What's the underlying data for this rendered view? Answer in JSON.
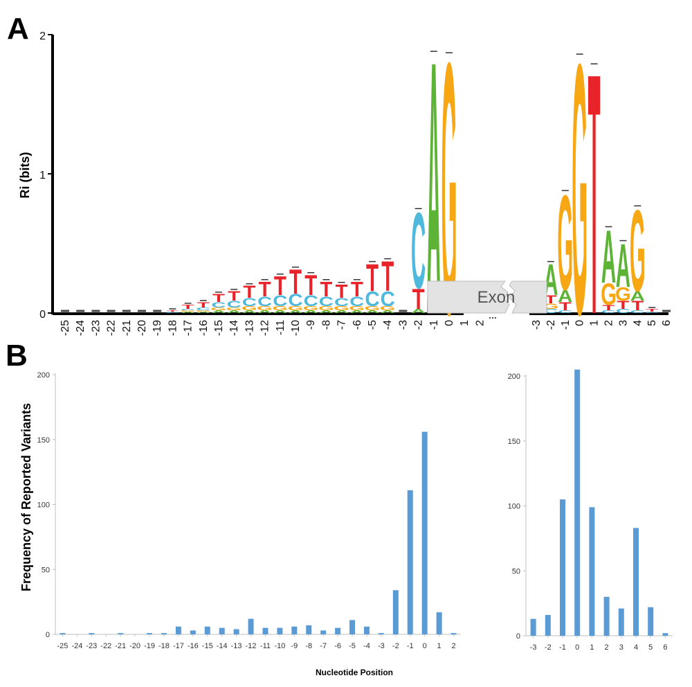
{
  "panel_a_label": "A",
  "panel_b_label": "B",
  "exon_label": "Exon",
  "break_mark": "...",
  "chart_data": [
    {
      "type": "sequence-logo",
      "panel": "A",
      "title": "",
      "ylabel": "Ri (bits)",
      "xlabel": "",
      "ylim": [
        0,
        2
      ],
      "yticks": [
        0,
        1,
        2
      ],
      "colors": {
        "A": "#5cb335",
        "C": "#4fb8dd",
        "G": "#f6a713",
        "T": "#e8242a"
      },
      "segments": [
        {
          "name": "acceptor",
          "positions": [
            "-25",
            "-24",
            "-23",
            "-22",
            "-21",
            "-20",
            "-19",
            "-18",
            "-17",
            "-16",
            "-15",
            "-14",
            "-13",
            "-12",
            "-11",
            "-10",
            "-9",
            "-8",
            "-7",
            "-6",
            "-5",
            "-4",
            "-3",
            "-2",
            "-1",
            "0",
            "1",
            "2"
          ],
          "stacks": [
            [],
            [],
            [],
            [],
            [],
            [],
            [],
            [
              [
                "C",
                0.01
              ],
              [
                "T",
                0.01
              ]
            ],
            [
              [
                "A",
                0.01
              ],
              [
                "G",
                0.01
              ],
              [
                "C",
                0.01
              ],
              [
                "T",
                0.03
              ]
            ],
            [
              [
                "A",
                0.01
              ],
              [
                "G",
                0.01
              ],
              [
                "C",
                0.02
              ],
              [
                "T",
                0.04
              ]
            ],
            [
              [
                "A",
                0.02
              ],
              [
                "G",
                0.02
              ],
              [
                "C",
                0.04
              ],
              [
                "T",
                0.06
              ]
            ],
            [
              [
                "A",
                0.02
              ],
              [
                "G",
                0.02
              ],
              [
                "C",
                0.05
              ],
              [
                "T",
                0.07
              ]
            ],
            [
              [
                "A",
                0.02
              ],
              [
                "G",
                0.03
              ],
              [
                "C",
                0.06
              ],
              [
                "T",
                0.09
              ]
            ],
            [
              [
                "A",
                0.02
              ],
              [
                "G",
                0.03
              ],
              [
                "C",
                0.07
              ],
              [
                "T",
                0.11
              ]
            ],
            [
              [
                "A",
                0.02
              ],
              [
                "G",
                0.03
              ],
              [
                "C",
                0.08
              ],
              [
                "T",
                0.14
              ]
            ],
            [
              [
                "A",
                0.02
              ],
              [
                "G",
                0.03
              ],
              [
                "C",
                0.09
              ],
              [
                "T",
                0.18
              ]
            ],
            [
              [
                "A",
                0.02
              ],
              [
                "G",
                0.03
              ],
              [
                "C",
                0.08
              ],
              [
                "T",
                0.15
              ]
            ],
            [
              [
                "A",
                0.02
              ],
              [
                "G",
                0.03
              ],
              [
                "C",
                0.07
              ],
              [
                "T",
                0.11
              ]
            ],
            [
              [
                "A",
                0.02
              ],
              [
                "G",
                0.03
              ],
              [
                "C",
                0.06
              ],
              [
                "T",
                0.1
              ]
            ],
            [
              [
                "A",
                0.02
              ],
              [
                "G",
                0.03
              ],
              [
                "C",
                0.07
              ],
              [
                "T",
                0.11
              ]
            ],
            [
              [
                "A",
                0.02
              ],
              [
                "G",
                0.03
              ],
              [
                "C",
                0.11
              ],
              [
                "T",
                0.2
              ]
            ],
            [
              [
                "A",
                0.02
              ],
              [
                "G",
                0.03
              ],
              [
                "C",
                0.11
              ],
              [
                "T",
                0.22
              ]
            ],
            [],
            [
              [
                "A",
                0.03
              ],
              [
                "T",
                0.15
              ],
              [
                "C",
                0.56
              ]
            ],
            [
              [
                "A",
                1.87
              ]
            ],
            [
              [
                "G",
                1.86
              ]
            ],
            [
              [
                "T",
                0.03
              ],
              [
                "A",
                0.04
              ],
              [
                "C",
                0.03
              ],
              [
                "G",
                0.06
              ]
            ],
            []
          ]
        },
        {
          "name": "donor",
          "positions": [
            "-3",
            "-2",
            "-1",
            "0",
            "1",
            "2",
            "3",
            "4",
            "5",
            "6"
          ],
          "stacks": [
            [],
            [
              [
                "C",
                0.03
              ],
              [
                "G",
                0.04
              ],
              [
                "T",
                0.06
              ],
              [
                "A",
                0.23
              ]
            ],
            [
              [
                "C",
                0.02
              ],
              [
                "T",
                0.06
              ],
              [
                "A",
                0.09
              ],
              [
                "G",
                0.7
              ]
            ],
            [
              [
                "G",
                1.85
              ]
            ],
            [
              [
                "T",
                1.78
              ]
            ],
            [
              [
                "C",
                0.02
              ],
              [
                "T",
                0.04
              ],
              [
                "G",
                0.16
              ],
              [
                "A",
                0.39
              ]
            ],
            [
              [
                "C",
                0.03
              ],
              [
                "T",
                0.06
              ],
              [
                "G",
                0.1
              ],
              [
                "A",
                0.32
              ]
            ],
            [
              [
                "C",
                0.02
              ],
              [
                "T",
                0.07
              ],
              [
                "A",
                0.07
              ],
              [
                "G",
                0.6
              ]
            ],
            [
              [
                "C",
                0.01
              ],
              [
                "T",
                0.02
              ]
            ],
            []
          ]
        }
      ]
    },
    {
      "type": "bar",
      "panel": "B",
      "title": "",
      "ylabel": "Frequency of Reported Variants",
      "xlabel": "Nucleotide Position",
      "ylim": [
        0,
        200
      ],
      "yticks": [
        0,
        50,
        100,
        150,
        200
      ],
      "categories": [
        "-25",
        "-24",
        "-23",
        "-22",
        "-21",
        "-20",
        "-19",
        "-18",
        "-17",
        "-16",
        "-15",
        "-14",
        "-13",
        "-12",
        "-11",
        "-10",
        "-9",
        "-8",
        "-7",
        "-6",
        "-5",
        "-4",
        "-3",
        "-2",
        "-1",
        "0",
        "1",
        "2"
      ],
      "values": [
        1,
        0,
        1,
        0,
        1,
        0,
        1,
        1,
        6,
        3,
        6,
        5,
        4,
        12,
        5,
        5,
        6,
        7,
        3,
        5,
        11,
        6,
        1,
        34,
        111,
        156,
        17,
        1
      ],
      "color": "#5b9bd5"
    },
    {
      "type": "bar",
      "panel": "B",
      "title": "",
      "ylabel": "",
      "xlabel": "",
      "ylim": [
        0,
        200
      ],
      "yticks": [
        0,
        50,
        100,
        150,
        200
      ],
      "categories": [
        "-3",
        "-2",
        "-1",
        "0",
        "1",
        "2",
        "3",
        "4",
        "5",
        "6"
      ],
      "values": [
        13,
        16,
        105,
        205,
        99,
        30,
        21,
        83,
        22,
        2
      ],
      "color": "#5b9bd5"
    }
  ]
}
